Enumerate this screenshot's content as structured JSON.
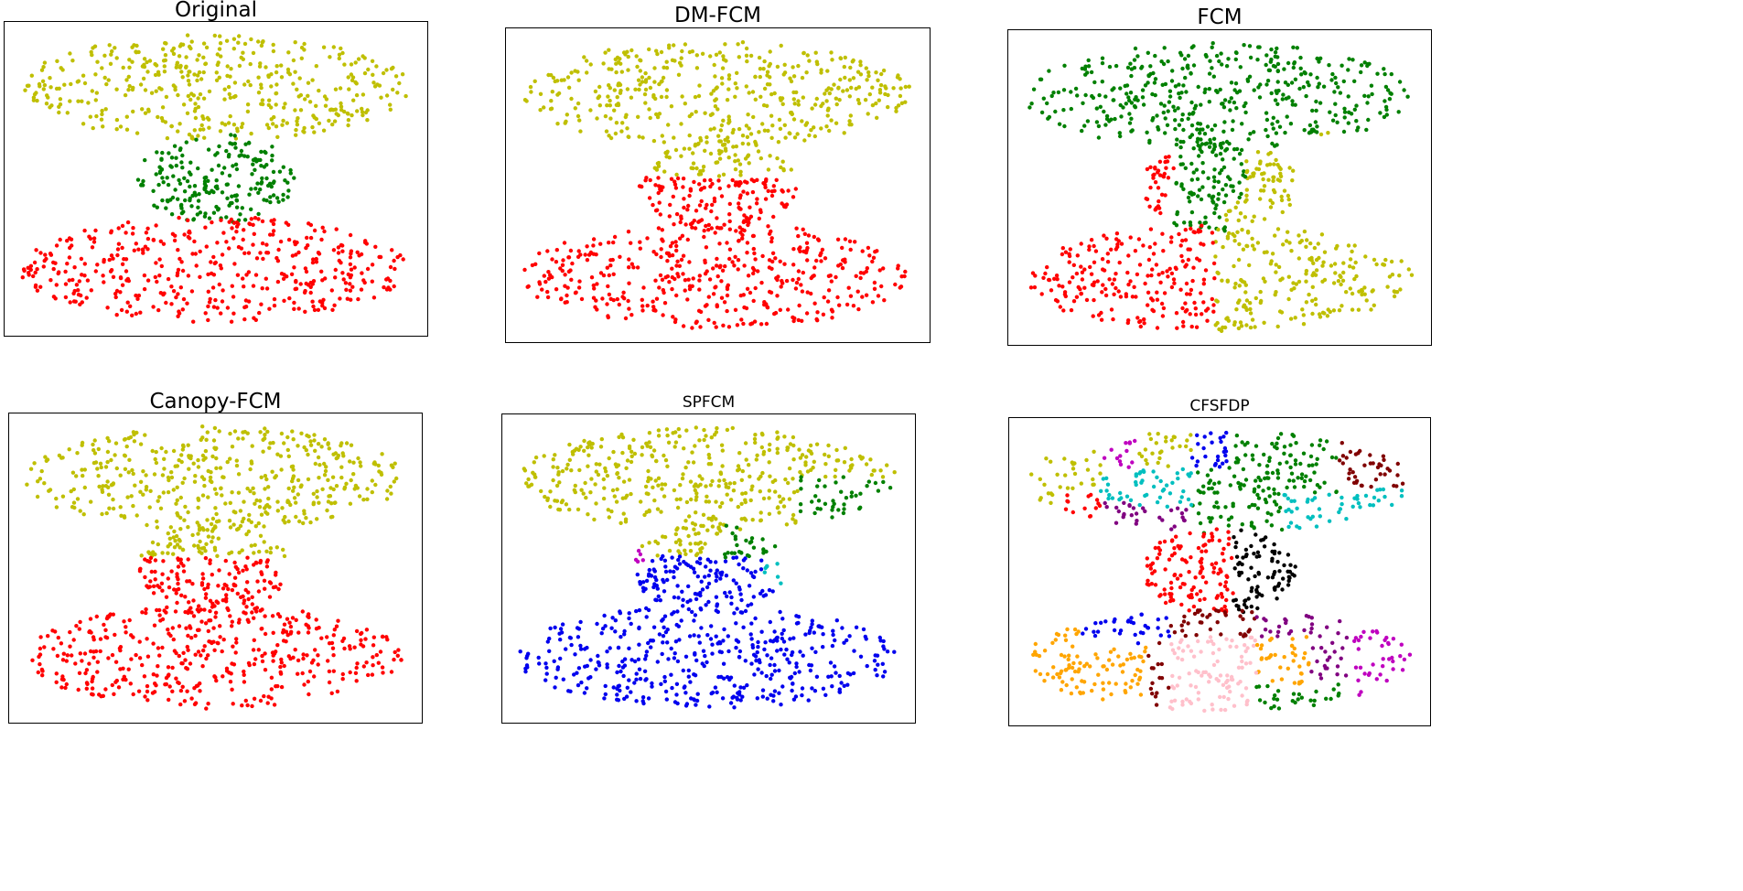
{
  "colors": {
    "y": "#bfbf00",
    "g": "#008000",
    "r": "#ff0000",
    "b": "#0000ee",
    "c": "#00bfbf",
    "m": "#bf00bf",
    "k": "#000000",
    "o": "#ffa500",
    "p": "#ffc0cb",
    "n": "#800000",
    "u": "#800080"
  },
  "panels": [
    {
      "title": "Original"
    },
    {
      "title": "DM-FCM"
    },
    {
      "title": "FCM"
    },
    {
      "title": "Canopy-FCM"
    },
    {
      "title": "SPFCM"
    },
    {
      "title": "CFSFDP"
    }
  ],
  "chart_data": [
    {
      "type": "scatter",
      "title": "Original",
      "clusters": [
        "top: y",
        "middle: g",
        "bottom: r"
      ]
    },
    {
      "type": "scatter",
      "title": "DM-FCM",
      "clusters": [
        "top: y",
        "middle upper: y",
        "middle lower: r",
        "bottom: r"
      ]
    },
    {
      "type": "scatter",
      "title": "FCM",
      "clusters": [
        "top: g",
        "middle left: r",
        "middle center: g",
        "middle right: y",
        "bottom left: r",
        "bottom right: y"
      ]
    },
    {
      "type": "scatter",
      "title": "Canopy-FCM",
      "clusters": [
        "top: y",
        "middle upper: y",
        "middle lower: r",
        "bottom: r"
      ]
    },
    {
      "type": "scatter",
      "title": "SPFCM",
      "clusters": [
        "top: y",
        "top right: g",
        "middle upper-left: y",
        "middle upper-right: g",
        "middle left edge: m",
        "middle right edge: c",
        "middle lower: b",
        "bottom: b"
      ]
    },
    {
      "type": "scatter",
      "title": "CFSFDP",
      "clusters": [
        "top: y, m, b, g, n, r, c, u",
        "middle left: r",
        "middle right: k",
        "bottom: b, o, p, n, u, m, g"
      ]
    }
  ]
}
